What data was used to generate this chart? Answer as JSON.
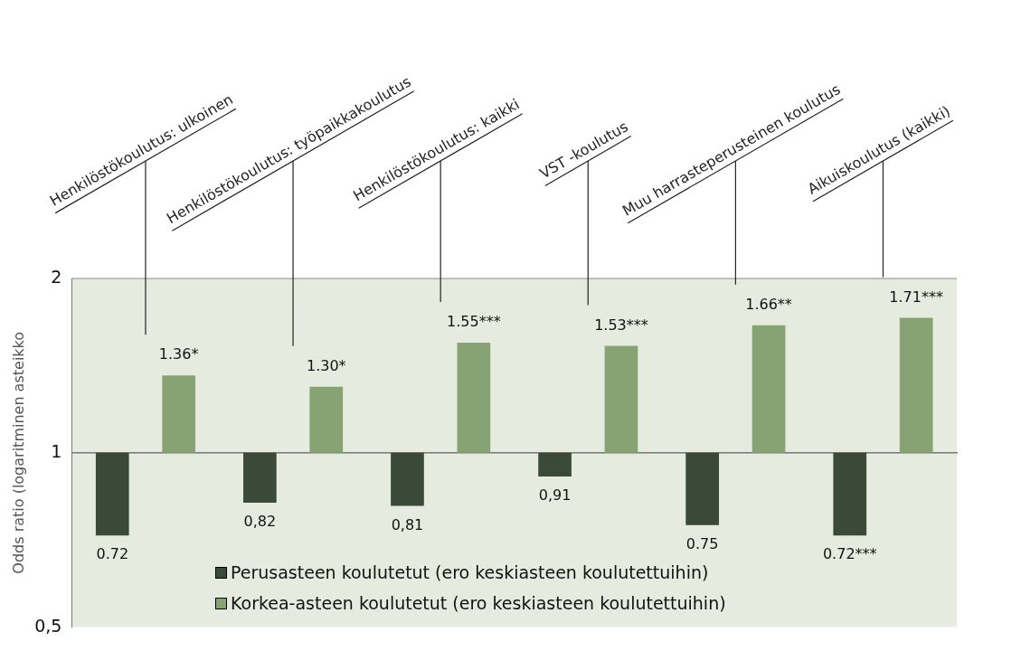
{
  "chart_data": {
    "type": "bar",
    "ylabel": "Odds ratio (logaritminen asteikko",
    "categories": [
      "Henkilöstökoulutus: ulkoinen",
      "Henkilöstökoulutus: työpaikkakoulutus",
      "Henkilöstökoulutus: kaikki",
      "VST -koulutus",
      "Muu harrasteperusteinen koulutus",
      "Aikuiskoulutus (kaikki)"
    ],
    "series": [
      {
        "name": "Perusasteen koulutetut (ero keskiasteen koulutettuihin)",
        "color": "#3b4a37",
        "base": [
          1,
          1,
          1,
          1,
          1,
          1
        ],
        "values": [
          -0.28,
          -0.18,
          -0.19,
          -0.09,
          -0.25,
          -0.28
        ],
        "value_labels": [
          "0.72",
          "0,82",
          "0,81",
          "0,91",
          "0.75",
          "0.72***"
        ]
      },
      {
        "name": "Korkea-asteen koulutetut (ero keskiasteen koulutettuihin)",
        "color": "#87a373",
        "base": [
          1,
          1,
          1,
          1,
          1,
          1
        ],
        "values": [
          0.36,
          0.3,
          0.55,
          0.53,
          0.66,
          0.71
        ],
        "value_labels": [
          "1.36*",
          "1.30*",
          "1.55***",
          "1.53***",
          "1.66**",
          "1.71***"
        ]
      }
    ],
    "log": "y",
    "ylim": [
      0.5,
      2
    ],
    "yticks": [
      {
        "value": 0.5,
        "label": "0,5"
      },
      {
        "value": 1,
        "label": "1"
      },
      {
        "value": 2,
        "label": "2"
      }
    ],
    "ref_lines": [
      {
        "axis": "y",
        "value": 1
      }
    ],
    "grid": false,
    "legend": "bottom left"
  }
}
